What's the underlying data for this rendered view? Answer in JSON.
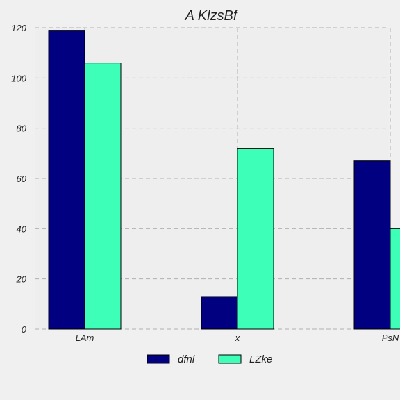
{
  "chart_data": {
    "type": "bar",
    "title": "A KlzsBf",
    "xlabel": "",
    "ylabel": "",
    "categories": [
      "LAm",
      "x",
      "PsN"
    ],
    "series": [
      {
        "name": "dfnl",
        "values": [
          119,
          13,
          67
        ],
        "color": "#000080"
      },
      {
        "name": "LZke",
        "values": [
          106,
          72,
          40
        ],
        "color": "#3dffb7"
      }
    ],
    "ylim": [
      0,
      120
    ],
    "yticks": [
      "0",
      "20",
      "40",
      "60",
      "80",
      "100",
      "120"
    ],
    "grid": true,
    "legend_position": "bottom-center",
    "background_color": "#eeeeee",
    "grid_color": "#b0b0b0"
  }
}
